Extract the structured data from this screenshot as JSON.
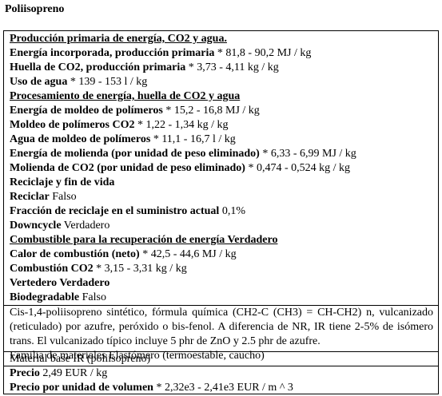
{
  "title": "Poliisopreno",
  "energy": {
    "heading": "Producción primaria de energía, CO2 y agua.",
    "rows": [
      {
        "label": "Energía incorporada, producción primaria",
        "value": " * 81,8 - 90,2 MJ / kg"
      },
      {
        "label": "Huella de CO2, producción primaria",
        "value": " * 3,73 - 4,11 kg / kg"
      },
      {
        "label": "Uso de agua",
        "value": " * 139 - 153 l / kg"
      }
    ],
    "processing_heading": "Procesamiento de energía, huella de CO2 y agua",
    "processing_rows": [
      {
        "label": "Energía de moldeo de polímeros",
        "value": " * 15,2 - 16,8 MJ / kg"
      },
      {
        "label": "Moldeo de polímeros CO2",
        "value": " * 1,22 - 1,34 kg / kg"
      },
      {
        "label": "Agua de moldeo de polímeros",
        "value": " * 11,1 - 16,7 l / kg"
      },
      {
        "label": "Energía de molienda (por unidad de peso eliminado)",
        "value": " * 6,33 - 6,99 MJ / kg"
      },
      {
        "label": "Molienda de CO2 (por unidad de peso eliminado)",
        "value": " * 0,474 - 0,524 kg / kg"
      }
    ],
    "recycle_heading": "Reciclaje y fin de vida",
    "recycle_rows": [
      {
        "label": "Reciclar",
        "value": " Falso"
      },
      {
        "label": "Fracción de reciclaje en el suministro actual",
        "value": " 0,1%"
      },
      {
        "label": "Downcycle",
        "value": " Verdadero"
      }
    ],
    "fuel_heading": "Combustible para la recuperación de energía Verdadero",
    "fuel_rows": [
      {
        "label": "Calor de combustión (neto)",
        "value": " * 42,5 - 44,6 MJ / kg"
      },
      {
        "label": "Combustión CO2",
        "value": " * 3,15 - 3,31 kg / kg"
      }
    ],
    "landfill": "Vertedero Verdadero",
    "biodegradable": {
      "label": "Biodegradable",
      "value": " Falso"
    }
  },
  "description": {
    "text": "Cis-1,4-poliisopreno sintético, fórmula química (CH2-C (CH3) = CH-CH2) n, vulcanizado (reticulado) por azufre, peróxido o bis-fenol. A diferencia de NR, IR tiene 2-5% de isómero trans. El vulcanizado típico incluye 5 phr de ZnO y 2.5 phr de azufre.",
    "family": "Familia de materiales Elastómero (termoestable, caucho)",
    "base": "Material base IR (poliisopreno)"
  },
  "price": {
    "price_label": "Precio",
    "price_value": " 2,49 EUR / kg",
    "volume_label": "Precio por unidad de volumen",
    "volume_value": " * 2,32e3 - 2,41e3 EUR / m ^ 3"
  }
}
